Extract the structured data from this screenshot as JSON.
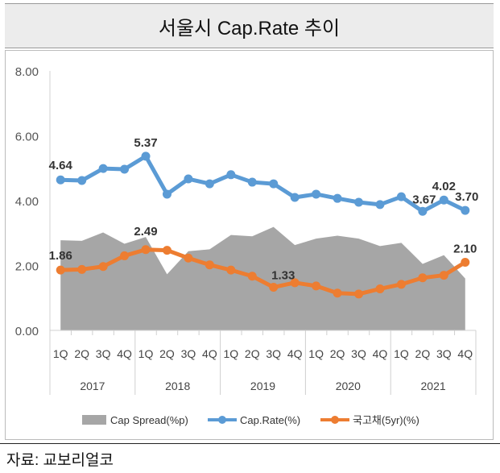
{
  "title": "서울시 Cap.Rate 추이",
  "source": "자료: 교보리얼코",
  "chart_data": {
    "type": "line",
    "title": "서울시 Cap.Rate 추이",
    "ylim": [
      0,
      8
    ],
    "yticks": [
      "0.00",
      "2.00",
      "4.00",
      "6.00",
      "8.00"
    ],
    "ytick_values": [
      0,
      2,
      4,
      6,
      8
    ],
    "categories": [
      "1Q",
      "2Q",
      "3Q",
      "4Q",
      "1Q",
      "2Q",
      "3Q",
      "4Q",
      "1Q",
      "2Q",
      "3Q",
      "4Q",
      "1Q",
      "2Q",
      "3Q",
      "4Q",
      "1Q",
      "2Q",
      "3Q",
      "4Q"
    ],
    "years": [
      "2017",
      "2018",
      "2019",
      "2020",
      "2021"
    ],
    "legend_position": "bottom",
    "series": [
      {
        "name": "Cap Spread(%p)",
        "type": "area",
        "color": "#a6a6a6",
        "values": [
          2.78,
          2.76,
          3.02,
          2.67,
          2.88,
          1.73,
          2.44,
          2.5,
          2.94,
          2.9,
          3.19,
          2.63,
          2.83,
          2.92,
          2.83,
          2.6,
          2.7,
          2.05,
          2.32,
          1.6
        ]
      },
      {
        "name": "Cap.Rate(%)",
        "type": "line",
        "color": "#5b9bd5",
        "values": [
          4.64,
          4.62,
          4.99,
          4.97,
          5.37,
          4.2,
          4.67,
          4.52,
          4.8,
          4.57,
          4.52,
          4.1,
          4.2,
          4.07,
          3.95,
          3.88,
          4.12,
          3.67,
          4.02,
          3.7
        ],
        "labels": [
          {
            "index": 0,
            "text": "4.64"
          },
          {
            "index": 4,
            "text": "5.37"
          },
          {
            "index": 17,
            "text": "3.67"
          },
          {
            "index": 18,
            "text": "4.02"
          },
          {
            "index": 19,
            "text": "3.70"
          }
        ]
      },
      {
        "name": "국고채(5yr)(%)",
        "type": "line",
        "color": "#ed7d31",
        "values": [
          1.86,
          1.88,
          1.97,
          2.3,
          2.49,
          2.47,
          2.23,
          2.02,
          1.86,
          1.67,
          1.33,
          1.47,
          1.37,
          1.15,
          1.12,
          1.28,
          1.42,
          1.62,
          1.7,
          2.1
        ],
        "labels": [
          {
            "index": 0,
            "text": "1.86"
          },
          {
            "index": 4,
            "text": "2.49"
          },
          {
            "index": 10,
            "text": "1.33"
          },
          {
            "index": 19,
            "text": "2.10"
          }
        ]
      }
    ]
  }
}
